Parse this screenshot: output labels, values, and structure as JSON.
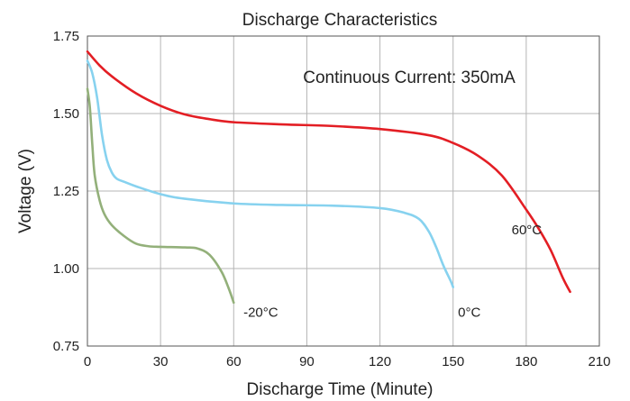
{
  "chart_data": {
    "type": "line",
    "title": "Discharge Characteristics",
    "xlabel": "Discharge Time (Minute)",
    "ylabel": "Voltage (V)",
    "annotation": "Continuous Current: 350mA",
    "xlim": [
      0,
      210
    ],
    "ylim": [
      0.75,
      1.75
    ],
    "xticks": [
      "0",
      "30",
      "60",
      "90",
      "120",
      "150",
      "180",
      "210"
    ],
    "yticks": [
      "0.75",
      "1.00",
      "1.25",
      "1.50",
      "1.75"
    ],
    "grid": true,
    "series": [
      {
        "name": "60°C",
        "color": "#e31e24",
        "x": [
          0,
          5,
          10,
          20,
          30,
          40,
          50,
          60,
          80,
          100,
          120,
          140,
          150,
          160,
          170,
          180,
          185,
          190,
          195,
          198
        ],
        "y": [
          1.7,
          1.655,
          1.62,
          1.565,
          1.525,
          1.497,
          1.482,
          1.472,
          1.465,
          1.46,
          1.45,
          1.43,
          1.405,
          1.365,
          1.3,
          1.19,
          1.13,
          1.06,
          0.97,
          0.925
        ]
      },
      {
        "name": "0°C",
        "color": "#87d2ef",
        "x": [
          0,
          2,
          4,
          6,
          8,
          10,
          12,
          15,
          20,
          30,
          40,
          60,
          80,
          100,
          120,
          130,
          136,
          140,
          143,
          146,
          149,
          150
        ],
        "y": [
          1.67,
          1.63,
          1.55,
          1.43,
          1.35,
          1.31,
          1.29,
          1.28,
          1.265,
          1.24,
          1.225,
          1.21,
          1.205,
          1.203,
          1.195,
          1.18,
          1.16,
          1.12,
          1.07,
          1.01,
          0.96,
          0.94
        ]
      },
      {
        "name": "-20°C",
        "color": "#93b07a",
        "x": [
          0,
          1,
          2,
          3,
          5,
          7,
          10,
          15,
          20,
          25,
          30,
          40,
          45,
          50,
          55,
          58,
          60
        ],
        "y": [
          1.58,
          1.52,
          1.4,
          1.3,
          1.22,
          1.175,
          1.14,
          1.105,
          1.08,
          1.072,
          1.07,
          1.068,
          1.065,
          1.045,
          0.99,
          0.935,
          0.89
        ]
      }
    ],
    "series_label_positions": [
      {
        "series": "60°C",
        "x": 174,
        "y": 1.11
      },
      {
        "series": "0°C",
        "x": 152,
        "y": 0.845
      },
      {
        "series": "-20°C",
        "x": 64,
        "y": 0.845
      }
    ]
  }
}
